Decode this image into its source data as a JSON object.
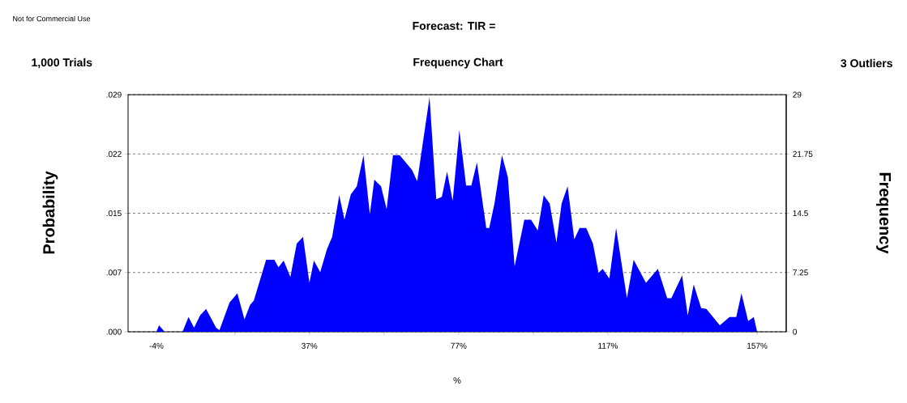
{
  "chart_data": {
    "type": "area",
    "title": "Forecast: TIR =",
    "subtitle": "Frequency Chart",
    "xlabel": "%",
    "ylabel": "Probability",
    "y2label": "Frequency",
    "annotations": [
      "Not for Commercial Use",
      "1,000 Trials",
      "3 Outliers"
    ],
    "xlim": [
      -11.6,
      164.8
    ],
    "xticks": [
      {
        "value": -4,
        "label": "-4%"
      },
      {
        "value": 17,
        "label": null
      },
      {
        "value": 37,
        "label": "37%"
      },
      {
        "value": 57,
        "label": null
      },
      {
        "value": 77,
        "label": "77%"
      },
      {
        "value": 97,
        "label": null
      },
      {
        "value": 117,
        "label": "117%"
      },
      {
        "value": 137,
        "label": null
      },
      {
        "value": 157,
        "label": "157%"
      }
    ],
    "ylim": [
      0,
      0.029
    ],
    "yticks": [
      {
        "value": 0,
        "label": ".000"
      },
      {
        "value": 0.00725,
        "label": ".007"
      },
      {
        "value": 0.0145,
        "label": ".015"
      },
      {
        "value": 0.02175,
        "label": ".022"
      },
      {
        "value": 0.029,
        "label": ".029"
      }
    ],
    "y2lim": [
      0,
      29
    ],
    "y2ticks": [
      0,
      7.25,
      14.5,
      21.75,
      29
    ],
    "grid": "y",
    "line_style": "dashed",
    "series": [
      {
        "axis": "y2",
        "color": "#0000ff",
        "x": [
          -4,
          -3.3,
          -1.8,
          3.0,
          4.6,
          6.1,
          7.7,
          9.3,
          12.0,
          12.9,
          15.6,
          17.7,
          19.6,
          21.1,
          22.1,
          25.4,
          27.6,
          28.7,
          30.1,
          31.9,
          33.6,
          35.3,
          37.0,
          38.2,
          39.9,
          41.7,
          43.1,
          45.0,
          46.4,
          48.1,
          49.7,
          51.5,
          53.2,
          54.4,
          56.2,
          57.7,
          59.4,
          61.2,
          64.5,
          65.9,
          69.2,
          71.0,
          72.5,
          73.9,
          75.4,
          77.2,
          79.0,
          80.4,
          81.9,
          84.4,
          85.2,
          86.6,
          88.6,
          90.2,
          92.0,
          94.6,
          96.4,
          98.2,
          99.8,
          101.4,
          103.2,
          104.6,
          106.2,
          108.0,
          109.4,
          111.2,
          113.0,
          114.5,
          115.6,
          117.4,
          119.2,
          122.1,
          123.9,
          127.2,
          130.4,
          132.9,
          134.0,
          136.9,
          138.4,
          140.0,
          142.0,
          143.4,
          147.0,
          149.6,
          151.4,
          152.8,
          154.6,
          156.1,
          157
        ],
        "values": [
          0,
          0.8,
          0,
          0,
          1.8,
          0.5,
          2.0,
          2.8,
          0.5,
          0.2,
          3.6,
          4.7,
          1.5,
          3.3,
          3.8,
          8.8,
          8.8,
          7.9,
          8.7,
          6.7,
          10.8,
          11.6,
          6.0,
          8.7,
          7.3,
          10.1,
          11.6,
          16.7,
          13.7,
          16.8,
          17.8,
          21.6,
          14.4,
          18.6,
          17.8,
          15.0,
          21.6,
          21.6,
          19.8,
          18.4,
          28.7,
          16.2,
          16.5,
          19.6,
          16.0,
          24.7,
          17.9,
          17.9,
          20.7,
          12.7,
          12.7,
          15.7,
          21.6,
          18.9,
          8.0,
          13.7,
          13.7,
          12.4,
          16.7,
          15.7,
          10.9,
          15.7,
          17.8,
          11.3,
          12.7,
          12.7,
          10.8,
          7.2,
          7.7,
          6.5,
          12.7,
          4.1,
          8.8,
          6.0,
          7.7,
          4.1,
          4.1,
          6.9,
          2.0,
          5.8,
          2.9,
          2.8,
          0.8,
          1.8,
          1.8,
          4.7,
          1.3,
          1.8,
          0
        ]
      }
    ]
  }
}
